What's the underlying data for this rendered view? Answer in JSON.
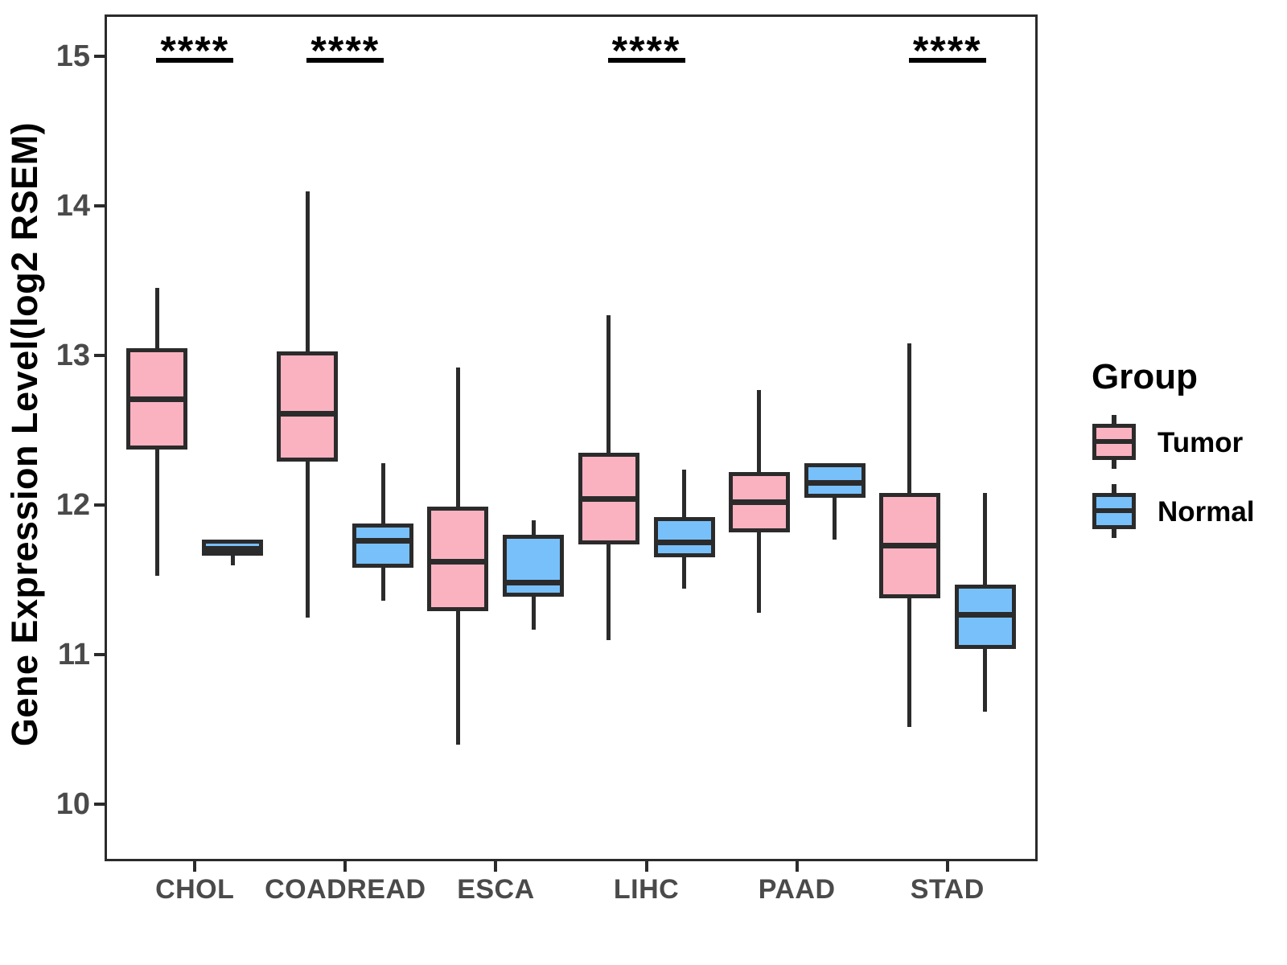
{
  "y_axis": {
    "title": "Gene Expression Level(log2 RSEM)",
    "ticks": [
      15,
      14,
      13,
      12,
      11,
      10
    ],
    "range": [
      9.62,
      15.28
    ]
  },
  "x_axis": {
    "categories": [
      "CHOL",
      "COADREAD",
      "ESCA",
      "LIHC",
      "PAAD",
      "STAD"
    ]
  },
  "legend": {
    "title": "Group",
    "items": [
      {
        "label": "Tumor",
        "color": "#FAB2C1"
      },
      {
        "label": "Normal",
        "color": "#78C0FA"
      }
    ]
  },
  "significance": [
    {
      "category": "CHOL",
      "label": "****"
    },
    {
      "category": "COADREAD",
      "label": "****"
    },
    {
      "category": "LIHC",
      "label": "****"
    },
    {
      "category": "STAD",
      "label": "****"
    }
  ],
  "colors": {
    "tumor_fill": "#FAB2C1",
    "normal_fill": "#78C0FA",
    "box_border": "#2b2b2b",
    "axis_text": "#4a4a4a",
    "axis_line": "#2b2b2b"
  },
  "chart_data": {
    "type": "boxplot",
    "title": "",
    "xlabel": "",
    "ylabel": "Gene Expression Level(log2 RSEM)",
    "ylim": [
      9.62,
      15.28
    ],
    "y_ticks": [
      10,
      11,
      12,
      13,
      14,
      15
    ],
    "grid": false,
    "legend_position": "right",
    "categories": [
      "CHOL",
      "COADREAD",
      "ESCA",
      "LIHC",
      "PAAD",
      "STAD"
    ],
    "series": [
      {
        "name": "Tumor",
        "color": "#FAB2C1",
        "boxes": [
          {
            "category": "CHOL",
            "min": 11.53,
            "q1": 12.37,
            "median": 12.71,
            "q3": 13.05,
            "max": 13.45
          },
          {
            "category": "COADREAD",
            "min": 11.25,
            "q1": 12.29,
            "median": 12.61,
            "q3": 13.03,
            "max": 14.1
          },
          {
            "category": "ESCA",
            "min": 10.4,
            "q1": 11.29,
            "median": 11.62,
            "q3": 11.99,
            "max": 12.92
          },
          {
            "category": "LIHC",
            "min": 11.1,
            "q1": 11.74,
            "median": 12.04,
            "q3": 12.35,
            "max": 13.27
          },
          {
            "category": "PAAD",
            "min": 11.28,
            "q1": 11.82,
            "median": 12.02,
            "q3": 12.22,
            "max": 12.77
          },
          {
            "category": "STAD",
            "min": 10.52,
            "q1": 11.38,
            "median": 11.73,
            "q3": 12.08,
            "max": 13.08
          }
        ]
      },
      {
        "name": "Normal",
        "color": "#78C0FA",
        "boxes": [
          {
            "category": "CHOL",
            "min": 11.6,
            "q1": 11.66,
            "median": 11.71,
            "q3": 11.77,
            "max": 11.77
          },
          {
            "category": "COADREAD",
            "min": 11.36,
            "q1": 11.58,
            "median": 11.76,
            "q3": 11.88,
            "max": 12.28
          },
          {
            "category": "ESCA",
            "min": 11.17,
            "q1": 11.39,
            "median": 11.48,
            "q3": 11.8,
            "max": 11.9
          },
          {
            "category": "LIHC",
            "min": 11.44,
            "q1": 11.65,
            "median": 11.75,
            "q3": 11.92,
            "max": 12.24
          },
          {
            "category": "PAAD",
            "min": 11.77,
            "q1": 12.05,
            "median": 12.15,
            "q3": 12.28,
            "max": 12.28
          },
          {
            "category": "STAD",
            "min": 10.62,
            "q1": 11.04,
            "median": 11.27,
            "q3": 11.47,
            "max": 12.08
          }
        ]
      }
    ]
  }
}
